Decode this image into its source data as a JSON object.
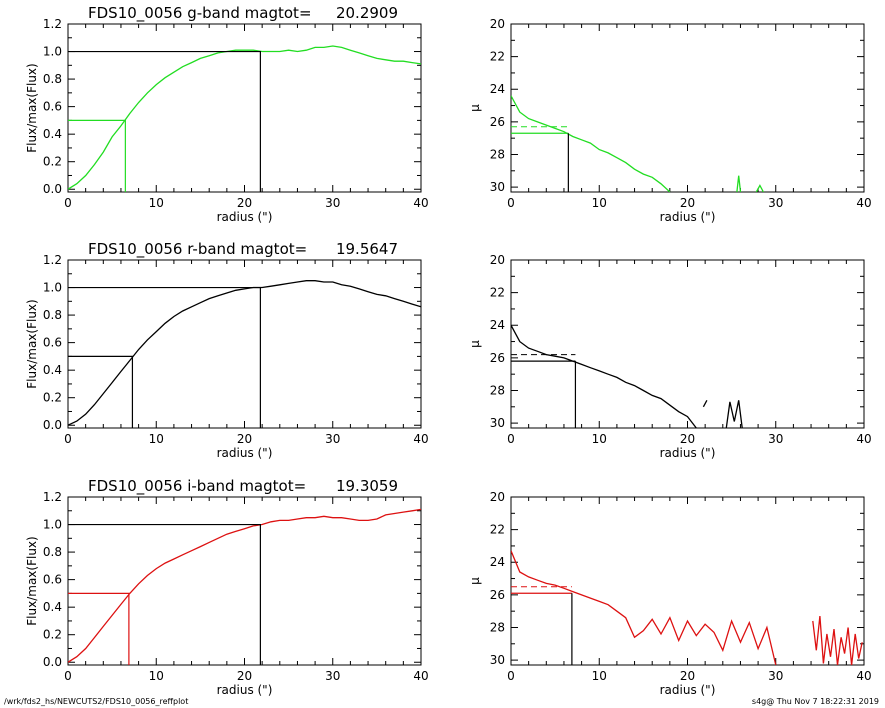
{
  "footer": {
    "left": "/wrk/fds2_hs/NEWCUTS2/FDS10_0056_reffplot",
    "right": "s4g@  Thu Nov  7 18:22:31 2019"
  },
  "chart_data": [
    {
      "type": "line",
      "band": "g",
      "color": "#22dd22",
      "title": "FDS10_0056 g-band  magtot=",
      "title_value": "20.2909",
      "xlabel": "radius (\")",
      "ylabel": "Flux/max(Flux)",
      "xlim": [
        0,
        40
      ],
      "ylim": [
        -0.02,
        1.2
      ],
      "xticks": [
        0,
        10,
        20,
        30,
        40
      ],
      "yticks": [
        0.0,
        0.2,
        0.4,
        0.6,
        0.8,
        1.0,
        1.2
      ],
      "x": [
        0,
        1,
        2,
        3,
        4,
        5,
        6,
        7,
        8,
        9,
        10,
        11,
        12,
        13,
        14,
        15,
        16,
        17,
        18,
        19,
        20,
        21,
        22,
        23,
        24,
        25,
        26,
        27,
        28,
        29,
        30,
        31,
        32,
        33,
        34,
        35,
        36,
        37,
        38,
        39,
        40
      ],
      "y": [
        0.0,
        0.04,
        0.1,
        0.18,
        0.27,
        0.38,
        0.46,
        0.55,
        0.63,
        0.7,
        0.76,
        0.81,
        0.85,
        0.89,
        0.92,
        0.95,
        0.97,
        0.99,
        1.0,
        1.01,
        1.01,
        1.01,
        1.0,
        1.0,
        1.0,
        1.01,
        1.0,
        1.01,
        1.03,
        1.03,
        1.04,
        1.03,
        1.01,
        0.99,
        0.97,
        0.95,
        0.94,
        0.93,
        0.93,
        0.92,
        0.91
      ],
      "half_radius": 6.5,
      "half_level": 0.5,
      "total_radius": 21.8,
      "total_level": 1.0
    },
    {
      "type": "line",
      "band": "g",
      "color": "#22dd22",
      "xlabel": "radius (\")",
      "ylabel": "μ",
      "xlim": [
        0,
        40
      ],
      "ylim": [
        30.3,
        20
      ],
      "yaxis_inverted": true,
      "xticks": [
        0,
        10,
        20,
        30,
        40
      ],
      "yticks": [
        20,
        22,
        24,
        26,
        28,
        30
      ],
      "x": [
        0,
        1,
        2,
        3,
        4,
        5,
        6,
        7,
        8,
        9,
        10,
        11,
        12,
        13,
        14,
        15,
        16,
        17,
        18
      ],
      "y": [
        24.4,
        25.4,
        25.8,
        26.0,
        26.2,
        26.4,
        26.6,
        26.9,
        27.1,
        27.3,
        27.7,
        27.9,
        28.2,
        28.5,
        28.9,
        29.2,
        29.4,
        29.8,
        30.3
      ],
      "fragments": [
        {
          "x": [
            25.6,
            25.8,
            26.0
          ],
          "y": [
            30.3,
            29.3,
            30.3
          ]
        },
        {
          "x": [
            27.8,
            28.2,
            28.6
          ],
          "y": [
            30.3,
            29.9,
            30.3
          ]
        }
      ],
      "half_radius": 6.5,
      "half_mu": 26.7,
      "mean_mu": 26.3
    },
    {
      "type": "line",
      "band": "r",
      "color": "#000000",
      "title": "FDS10_0056 r-band  magtot=",
      "title_value": "19.5647",
      "xlabel": "radius (\")",
      "ylabel": "Flux/max(Flux)",
      "xlim": [
        0,
        40
      ],
      "ylim": [
        -0.02,
        1.2
      ],
      "xticks": [
        0,
        10,
        20,
        30,
        40
      ],
      "yticks": [
        0.0,
        0.2,
        0.4,
        0.6,
        0.8,
        1.0,
        1.2
      ],
      "x": [
        0,
        1,
        2,
        3,
        4,
        5,
        6,
        7,
        8,
        9,
        10,
        11,
        12,
        13,
        14,
        15,
        16,
        17,
        18,
        19,
        20,
        21,
        22,
        23,
        24,
        25,
        26,
        27,
        28,
        29,
        30,
        31,
        32,
        33,
        34,
        35,
        36,
        37,
        38,
        39,
        40
      ],
      "y": [
        0.0,
        0.03,
        0.08,
        0.15,
        0.23,
        0.31,
        0.39,
        0.47,
        0.55,
        0.62,
        0.68,
        0.74,
        0.79,
        0.83,
        0.86,
        0.89,
        0.92,
        0.94,
        0.96,
        0.98,
        0.99,
        1.0,
        1.0,
        1.01,
        1.02,
        1.03,
        1.04,
        1.05,
        1.05,
        1.04,
        1.04,
        1.02,
        1.01,
        0.99,
        0.97,
        0.95,
        0.94,
        0.92,
        0.9,
        0.88,
        0.86
      ],
      "half_radius": 7.3,
      "half_level": 0.5,
      "total_radius": 21.8,
      "total_level": 1.0
    },
    {
      "type": "line",
      "band": "r",
      "color": "#000000",
      "xlabel": "radius (\")",
      "ylabel": "μ",
      "xlim": [
        0,
        40
      ],
      "ylim": [
        30.3,
        20
      ],
      "yaxis_inverted": true,
      "xticks": [
        0,
        10,
        20,
        30,
        40
      ],
      "yticks": [
        20,
        22,
        24,
        26,
        28,
        30
      ],
      "x": [
        0,
        1,
        2,
        3,
        4,
        5,
        6,
        7,
        8,
        9,
        10,
        11,
        12,
        13,
        14,
        15,
        16,
        17,
        18,
        19,
        20,
        21
      ],
      "y": [
        24.0,
        25.0,
        25.4,
        25.6,
        25.8,
        25.9,
        26.0,
        26.2,
        26.4,
        26.6,
        26.8,
        27.0,
        27.2,
        27.5,
        27.7,
        28.0,
        28.3,
        28.5,
        28.9,
        29.3,
        29.6,
        30.3
      ],
      "fragments": [
        {
          "x": [
            21.8,
            22.2
          ],
          "y": [
            29.0,
            28.6
          ]
        },
        {
          "x": [
            24.4,
            24.8,
            25.3,
            25.8,
            26.2
          ],
          "y": [
            30.3,
            28.7,
            29.9,
            28.6,
            30.3
          ]
        }
      ],
      "half_radius": 7.3,
      "half_mu": 26.2,
      "mean_mu": 25.8
    },
    {
      "type": "line",
      "band": "i",
      "color": "#dd1111",
      "title": "FDS10_0056 i-band  magtot=",
      "title_value": "19.3059",
      "xlabel": "radius (\")",
      "ylabel": "Flux/max(Flux)",
      "xlim": [
        0,
        40
      ],
      "ylim": [
        -0.02,
        1.2
      ],
      "xticks": [
        0,
        10,
        20,
        30,
        40
      ],
      "yticks": [
        0.0,
        0.2,
        0.4,
        0.6,
        0.8,
        1.0,
        1.2
      ],
      "x": [
        0,
        1,
        2,
        3,
        4,
        5,
        6,
        7,
        8,
        9,
        10,
        11,
        12,
        13,
        14,
        15,
        16,
        17,
        18,
        19,
        20,
        21,
        22,
        23,
        24,
        25,
        26,
        27,
        28,
        29,
        30,
        31,
        32,
        33,
        34,
        35,
        36,
        37,
        38,
        39,
        40
      ],
      "y": [
        0.0,
        0.04,
        0.1,
        0.18,
        0.26,
        0.34,
        0.42,
        0.5,
        0.57,
        0.63,
        0.68,
        0.72,
        0.75,
        0.78,
        0.81,
        0.84,
        0.87,
        0.9,
        0.93,
        0.95,
        0.97,
        0.99,
        1.0,
        1.02,
        1.03,
        1.03,
        1.04,
        1.05,
        1.05,
        1.06,
        1.05,
        1.05,
        1.04,
        1.03,
        1.03,
        1.04,
        1.07,
        1.08,
        1.09,
        1.1,
        1.11
      ],
      "half_radius": 6.9,
      "half_level": 0.5,
      "total_radius": 21.8,
      "total_level": 1.0
    },
    {
      "type": "line",
      "band": "i",
      "color": "#dd1111",
      "xlabel": "radius (\")",
      "ylabel": "μ",
      "xlim": [
        0,
        40
      ],
      "ylim": [
        30.3,
        20
      ],
      "yaxis_inverted": true,
      "xticks": [
        0,
        10,
        20,
        30,
        40
      ],
      "yticks": [
        20,
        22,
        24,
        26,
        28,
        30
      ],
      "x": [
        0,
        1,
        2,
        3,
        4,
        5,
        6,
        7,
        8,
        9,
        10,
        11,
        12,
        13,
        14,
        15,
        16,
        17,
        18,
        19,
        20,
        21,
        22,
        23,
        24,
        25,
        26,
        27,
        28,
        29,
        30
      ],
      "y": [
        23.3,
        24.6,
        24.9,
        25.1,
        25.3,
        25.4,
        25.6,
        25.8,
        26.0,
        26.2,
        26.4,
        26.6,
        27.0,
        27.4,
        28.6,
        28.2,
        27.5,
        28.4,
        27.4,
        28.8,
        27.6,
        28.5,
        27.8,
        28.3,
        29.4,
        27.6,
        28.9,
        27.7,
        29.3,
        28.0,
        30.3
      ],
      "fragments": [
        {
          "x": [
            34.2,
            34.6,
            35.0,
            35.4,
            35.8,
            36.2,
            36.6,
            37.0,
            37.4,
            37.8,
            38.2,
            38.6,
            39.0,
            39.4,
            39.8
          ],
          "y": [
            27.6,
            29.4,
            27.3,
            30.2,
            28.4,
            29.8,
            28.1,
            30.3,
            28.6,
            29.6,
            28.0,
            30.3,
            28.4,
            29.9,
            28.9
          ]
        }
      ],
      "half_radius": 6.9,
      "half_mu": 25.9,
      "mean_mu": 25.5
    }
  ]
}
